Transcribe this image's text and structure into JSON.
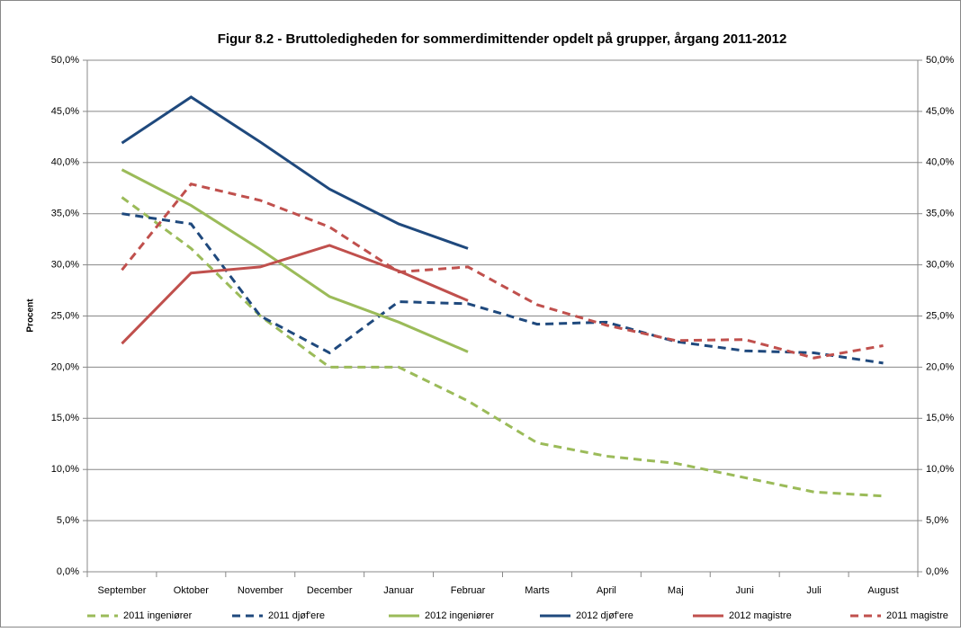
{
  "chart_data": {
    "type": "line",
    "title": "Figur 8.2 - Bruttoledigheden for sommerdimittender opdelt på grupper, årgang 2011-2012",
    "ylabel": "Procent",
    "categories": [
      "September",
      "Oktober",
      "November",
      "December",
      "Januar",
      "Februar",
      "Marts",
      "April",
      "Maj",
      "Juni",
      "Juli",
      "August"
    ],
    "series": [
      {
        "name": "2011 ingeniører",
        "color": "#9bbb59",
        "dash": true,
        "values": [
          36.6,
          31.6,
          25.0,
          20.0,
          20.0,
          16.7,
          12.6,
          11.3,
          10.6,
          9.2,
          7.8,
          7.4
        ]
      },
      {
        "name": "2011 djøf'ere",
        "color": "#1f497d",
        "dash": true,
        "values": [
          35.0,
          34.0,
          25.0,
          21.4,
          26.4,
          26.2,
          24.2,
          24.4,
          22.5,
          21.6,
          21.4,
          20.4
        ]
      },
      {
        "name": "2012 ingeniører",
        "color": "#9bbb59",
        "dash": false,
        "values": [
          39.3,
          35.8,
          31.5,
          26.9,
          24.4,
          21.5,
          null,
          null,
          null,
          null,
          null,
          null
        ]
      },
      {
        "name": "2012 djøf'ere",
        "color": "#1f497d",
        "dash": false,
        "values": [
          41.9,
          46.4,
          42.0,
          37.4,
          34.0,
          31.6,
          null,
          null,
          null,
          null,
          null,
          null
        ]
      },
      {
        "name": "2012 magistre",
        "color": "#c0504d",
        "dash": false,
        "values": [
          22.3,
          29.2,
          29.8,
          31.9,
          29.4,
          26.5,
          null,
          null,
          null,
          null,
          null,
          null
        ]
      },
      {
        "name": "2011 magistre",
        "color": "#c0504d",
        "dash": true,
        "values": [
          29.5,
          37.9,
          36.3,
          33.7,
          29.3,
          29.8,
          26.1,
          24.1,
          22.6,
          22.7,
          20.9,
          22.1
        ]
      }
    ],
    "ylim": [
      0,
      50
    ],
    "yticks": [
      {
        "value": 0,
        "label": "0,0%"
      },
      {
        "value": 5,
        "label": "5,0%"
      },
      {
        "value": 10,
        "label": "10,0%"
      },
      {
        "value": 15,
        "label": "15,0%"
      },
      {
        "value": 20,
        "label": "20,0%"
      },
      {
        "value": 25,
        "label": "25,0%"
      },
      {
        "value": 30,
        "label": "30,0%"
      },
      {
        "value": 35,
        "label": "35,0%"
      },
      {
        "value": 40,
        "label": "40,0%"
      },
      {
        "value": 45,
        "label": "45,0%"
      },
      {
        "value": 50,
        "label": "50,0%"
      }
    ],
    "y2lim": [
      0,
      50
    ],
    "y2ticks": [
      {
        "value": 0,
        "label": "0,0%"
      },
      {
        "value": 5,
        "label": "5,0%"
      },
      {
        "value": 10,
        "label": "10,0%"
      },
      {
        "value": 15,
        "label": "15,0%"
      },
      {
        "value": 20,
        "label": "20,0%"
      },
      {
        "value": 25,
        "label": "25,0%"
      },
      {
        "value": 30,
        "label": "30,0%"
      },
      {
        "value": 35,
        "label": "35,0%"
      },
      {
        "value": 40,
        "label": "40,0%"
      },
      {
        "value": 45,
        "label": "45,0%"
      },
      {
        "value": 50,
        "label": "50,0%"
      }
    ],
    "grid": true,
    "legend": "bottom"
  }
}
